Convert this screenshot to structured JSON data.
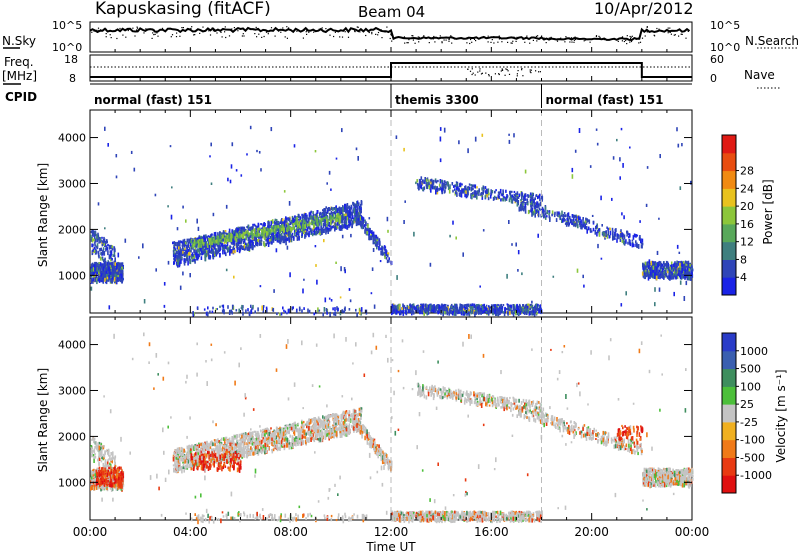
{
  "header": {
    "station": "Kapuskasing (fitACF)",
    "beam": "Beam 04",
    "date": "10/Apr/2012"
  },
  "side_labels": {
    "nsky": "N.Sky",
    "freq": "Freq.",
    "freq_unit": "[MHz]",
    "cpid": "CPID",
    "nsearch": "N.Search",
    "nave": "Nave"
  },
  "top_ticks": {
    "nsky_hi": "10^5",
    "nsky_lo": "10^0",
    "nsearch_hi": "10^5",
    "nsearch_lo": "10^0",
    "freq_hi": "18",
    "freq_lo": "8",
    "nave_hi": "60",
    "nave_lo": "0"
  },
  "cpid_segments": [
    {
      "label": "normal (fast) 151",
      "start_hour": 0,
      "end_hour": 12
    },
    {
      "label": "themis 3300",
      "start_hour": 12,
      "end_hour": 18
    },
    {
      "label": "normal (fast) 151",
      "start_hour": 18,
      "end_hour": 24
    }
  ],
  "chart_data": [
    {
      "type": "heatmap",
      "quantity": "Power",
      "ylabel": "Slant Range [km]",
      "xlabel": "",
      "x_range_hours": [
        0,
        24
      ],
      "ylim": [
        180,
        4600
      ],
      "y_ticks": [
        "1000",
        "2000",
        "3000",
        "4000"
      ],
      "colorbar": {
        "label": "Power [dB]",
        "ticks": [
          "4",
          "8",
          "12",
          "16",
          "20",
          "24",
          "28"
        ],
        "colors": [
          "#1a23e6",
          "#2f45b8",
          "#3f7f7f",
          "#58a85a",
          "#8cc63a",
          "#e8c21e",
          "#f08a12",
          "#e84d10",
          "#e01a14"
        ]
      },
      "features": [
        {
          "desc_range_km": [
            900,
            1300
          ],
          "hours": [
            0,
            1.2
          ]
        },
        {
          "desc_range_km": [
            1400,
            2600
          ],
          "hours": [
            3.2,
            10.8
          ]
        },
        {
          "desc_range_km": [
            200,
            420
          ],
          "hours": [
            12,
            18
          ]
        },
        {
          "desc_range_km": [
            2600,
            3300
          ],
          "hours": [
            13,
            16.5
          ]
        },
        {
          "desc_range_km": [
            900,
            1300
          ],
          "hours": [
            22,
            24
          ]
        }
      ]
    },
    {
      "type": "heatmap",
      "quantity": "Velocity",
      "ylabel": "Slant Range [km]",
      "xlabel": "Time UT",
      "x_range_hours": [
        0,
        24
      ],
      "x_ticks": [
        "00:00",
        "04:00",
        "08:00",
        "12:00",
        "16:00",
        "20:00",
        "00:00"
      ],
      "ylim": [
        180,
        4600
      ],
      "y_ticks": [
        "1000",
        "2000",
        "3000",
        "4000"
      ],
      "colorbar": {
        "label": "Velocity [m s⁻¹]",
        "ticks": [
          "1000",
          "500",
          "100",
          "25",
          "-25",
          "-100",
          "-500",
          "-1000"
        ],
        "colors": [
          "#2a3cc8",
          "#3a5fb0",
          "#3e8e5e",
          "#4cbf3a",
          "#c4c4c4",
          "#f0b020",
          "#f07a18",
          "#e83a12",
          "#e01010"
        ]
      }
    }
  ],
  "timeline_markers_hours": [
    12,
    18
  ]
}
